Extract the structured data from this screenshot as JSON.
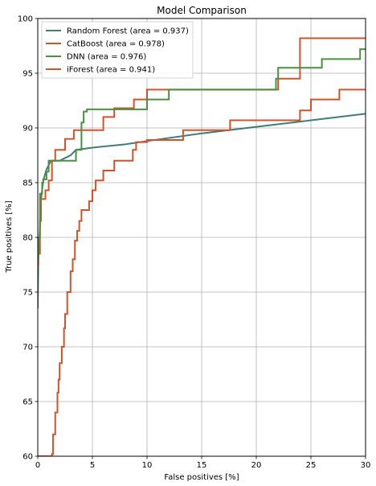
{
  "chart_data": {
    "type": "line",
    "title": "Model Comparison",
    "xlabel": "False positives [%]",
    "ylabel": "True positives [%]",
    "xlim": [
      0,
      30
    ],
    "ylim": [
      60,
      100
    ],
    "xticks": [
      0,
      5,
      10,
      15,
      20,
      25,
      30
    ],
    "yticks": [
      60,
      65,
      70,
      75,
      80,
      85,
      90,
      95,
      100
    ],
    "grid": true,
    "legend_position": "top-left",
    "series": [
      {
        "name": "Random Forest (area = 0.937)",
        "color": "#3f7d77",
        "step": false,
        "x": [
          0,
          0.05,
          0.2,
          0.3,
          0.5,
          0.8,
          1.2,
          2.0,
          3.0,
          3.5,
          5.0,
          8.0,
          10.0,
          15.0,
          20.0,
          25.0,
          30.0
        ],
        "y": [
          73.5,
          78.0,
          81.0,
          83.5,
          85.2,
          86.2,
          87.0,
          87.0,
          87.5,
          88.0,
          88.2,
          88.5,
          88.8,
          89.5,
          90.1,
          90.7,
          91.3
        ]
      },
      {
        "name": "CatBoost (area = 0.978)",
        "color": "#d2532a",
        "step": true,
        "x": [
          0,
          0.05,
          0.2,
          0.3,
          0.5,
          0.7,
          1.0,
          1.3,
          1.6,
          2.0,
          2.5,
          3.0,
          3.3,
          4.0,
          4.2,
          5.0,
          5.8,
          6.0,
          7.0,
          8.0,
          8.8,
          10.0,
          12.0,
          14.0,
          16.0,
          18.0,
          20.0,
          21.7,
          22.0,
          22.4,
          24.0,
          25.0,
          26.0,
          28.0,
          30.0
        ],
        "y": [
          77.5,
          78.5,
          81.5,
          83.5,
          83.5,
          84.3,
          85.2,
          87.0,
          88.0,
          88.0,
          89.0,
          89.0,
          89.8,
          89.8,
          89.8,
          89.8,
          89.8,
          91.0,
          91.8,
          91.8,
          92.6,
          93.5,
          93.5,
          93.5,
          93.5,
          93.5,
          93.5,
          93.5,
          94.5,
          94.5,
          98.2,
          98.2,
          98.2,
          98.2,
          98.2
        ]
      },
      {
        "name": "DNN (area = 0.976)",
        "color": "#4a9040",
        "step": true,
        "x": [
          0,
          0.05,
          0.2,
          0.4,
          0.5,
          0.8,
          1.0,
          1.3,
          3.5,
          4.0,
          4.2,
          4.5,
          8.0,
          10.0,
          12.0,
          14.0,
          16.0,
          18.0,
          21.8,
          22.0,
          24.0,
          25.8,
          26.0,
          29.0,
          29.5,
          30.0
        ],
        "y": [
          78.0,
          80.0,
          84.0,
          85.0,
          85.3,
          86.0,
          87.0,
          87.0,
          88.0,
          90.5,
          91.5,
          91.7,
          91.7,
          92.6,
          93.5,
          93.5,
          93.5,
          93.5,
          94.5,
          95.5,
          95.5,
          95.5,
          96.3,
          96.3,
          97.2,
          97.2
        ]
      },
      {
        "name": "iForest (area = 0.941)",
        "color": "#d2532a",
        "step": true,
        "x": [
          0,
          1.3,
          1.4,
          1.6,
          1.8,
          1.9,
          2.0,
          2.2,
          2.4,
          2.5,
          2.7,
          3.0,
          3.2,
          3.4,
          3.6,
          3.8,
          4.0,
          4.3,
          4.4,
          4.7,
          5.0,
          5.3,
          6.0,
          6.5,
          7.0,
          8.0,
          8.7,
          9.0,
          10.0,
          12.0,
          13.3,
          14.0,
          16.0,
          17.6,
          18.0,
          20.0,
          22.0,
          24.0,
          25.0,
          27.6,
          28.0,
          30.0
        ],
        "y": [
          60.0,
          60.2,
          62.0,
          64.0,
          65.8,
          67.0,
          68.5,
          70.0,
          71.7,
          73.0,
          75.0,
          76.9,
          78.0,
          79.7,
          80.6,
          81.5,
          82.5,
          82.5,
          82.5,
          83.3,
          84.3,
          85.2,
          86.1,
          86.1,
          87.0,
          87.0,
          88.0,
          88.7,
          88.9,
          88.9,
          89.8,
          89.8,
          89.8,
          90.7,
          90.7,
          90.7,
          90.7,
          91.6,
          92.6,
          93.5,
          93.5,
          93.5
        ]
      }
    ]
  }
}
